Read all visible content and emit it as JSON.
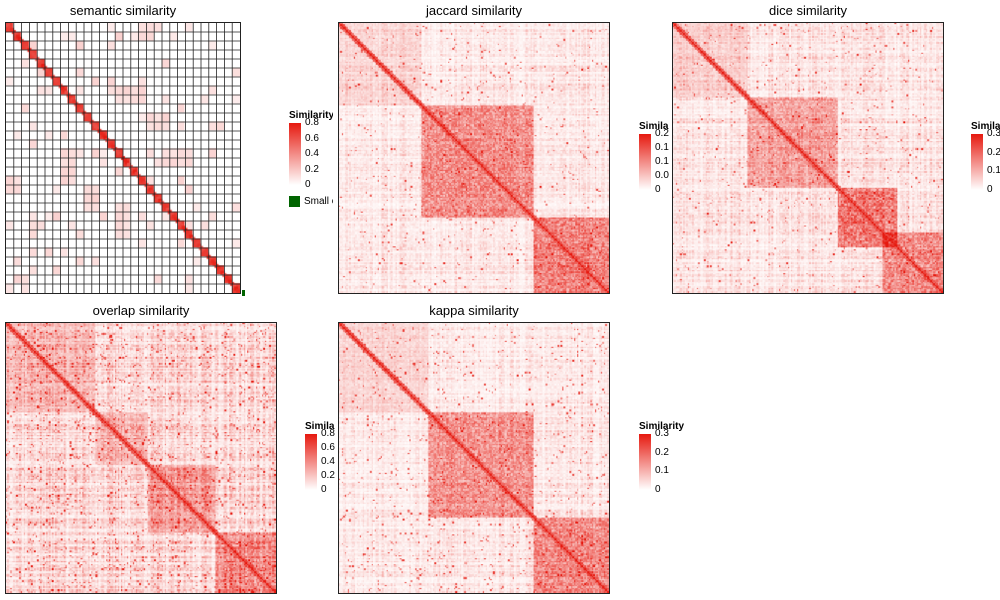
{
  "colors": {
    "low": "#ffffff",
    "high": "#e6190f",
    "border": "#222222",
    "small_cluster": "#006400"
  },
  "legend_title": "Similarity",
  "small_label": "Small clusters",
  "chart_data": [
    {
      "id": "semantic",
      "type": "heatmap",
      "title": "semantic similarity",
      "legend_ticks": [
        "0.8",
        "0.6",
        "0.4",
        "0.2",
        "0"
      ],
      "n": 30,
      "has_cluster_grid": true,
      "has_small_cluster_key": true
    },
    {
      "id": "jaccard",
      "type": "heatmap",
      "title": "jaccard similarity",
      "legend_ticks": [
        "0.2",
        "0.1",
        "0.1",
        "0.0",
        "0"
      ],
      "n": 180
    },
    {
      "id": "dice",
      "type": "heatmap",
      "title": "dice similarity",
      "legend_ticks": [
        "0.3",
        "0.2",
        "0.1",
        "0"
      ],
      "n": 180
    },
    {
      "id": "overlap",
      "type": "heatmap",
      "title": "overlap similarity",
      "legend_ticks": [
        "0.8",
        "0.6",
        "0.4",
        "0.2",
        "0"
      ],
      "n": 180
    },
    {
      "id": "kappa",
      "type": "heatmap",
      "title": "kappa similarity",
      "legend_ticks": [
        "0.3",
        "0.2",
        "0.1",
        "0"
      ],
      "n": 180
    }
  ]
}
